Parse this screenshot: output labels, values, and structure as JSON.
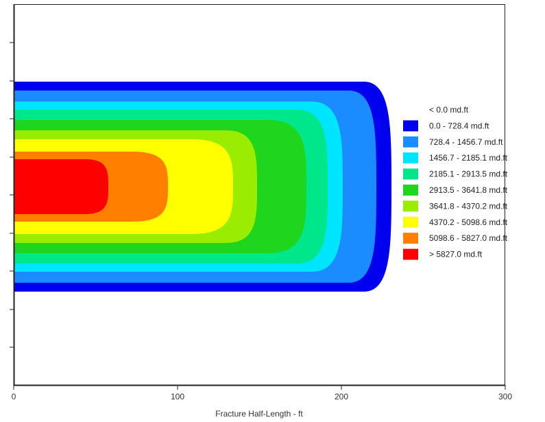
{
  "chart_data": {
    "type": "heatmap",
    "title": "",
    "xlabel": "Fracture Half-Length - ft",
    "ylabel": "",
    "xlim": [
      0,
      300
    ],
    "x_ticks": [
      "0",
      "100",
      "200",
      "300"
    ],
    "grid": false,
    "legend_position": "right",
    "legend": [
      {
        "label": "< 0.0 md.ft",
        "color": ""
      },
      {
        "label": "0.0 - 728.4 md.ft",
        "color": "#0000ee"
      },
      {
        "label": "728.4 - 1456.7 md.ft",
        "color": "#1a8cff"
      },
      {
        "label": "1456.7 - 2185.1 md.ft",
        "color": "#00e5ff"
      },
      {
        "label": "2185.1 - 2913.5 md.ft",
        "color": "#00e68a"
      },
      {
        "label": "2913.5 - 3641.8 md.ft",
        "color": "#1fd61f"
      },
      {
        "label": "3641.8 - 4370.2 md.ft",
        "color": "#99ee00"
      },
      {
        "label": "4370.2 - 5098.6 md.ft",
        "color": "#ffff00"
      },
      {
        "label": "5098.6 - 5827.0 md.ft",
        "color": "#ff8000"
      },
      {
        "label": "> 5827.0 md.ft",
        "color": "#ff0000"
      }
    ],
    "contour_extents_ft": [
      {
        "band": "0.0 - 728.4 md.ft",
        "x_max": 230
      },
      {
        "band": "728.4 - 1456.7 md.ft",
        "x_max": 210
      },
      {
        "band": "1456.7 - 2185.1 md.ft",
        "x_max": 200
      },
      {
        "band": "2185.1 - 2913.5 md.ft",
        "x_max": 180
      },
      {
        "band": "2913.5 - 3641.8 md.ft",
        "x_max": 170
      },
      {
        "band": "3641.8 - 4370.2 md.ft",
        "x_max": 140
      },
      {
        "band": "4370.2 - 5098.6 md.ft",
        "x_max": 135
      },
      {
        "band": "5098.6 - 5827.0 md.ft",
        "x_max": 95
      },
      {
        "band": "> 5827.0 md.ft",
        "x_max": 57
      }
    ]
  }
}
